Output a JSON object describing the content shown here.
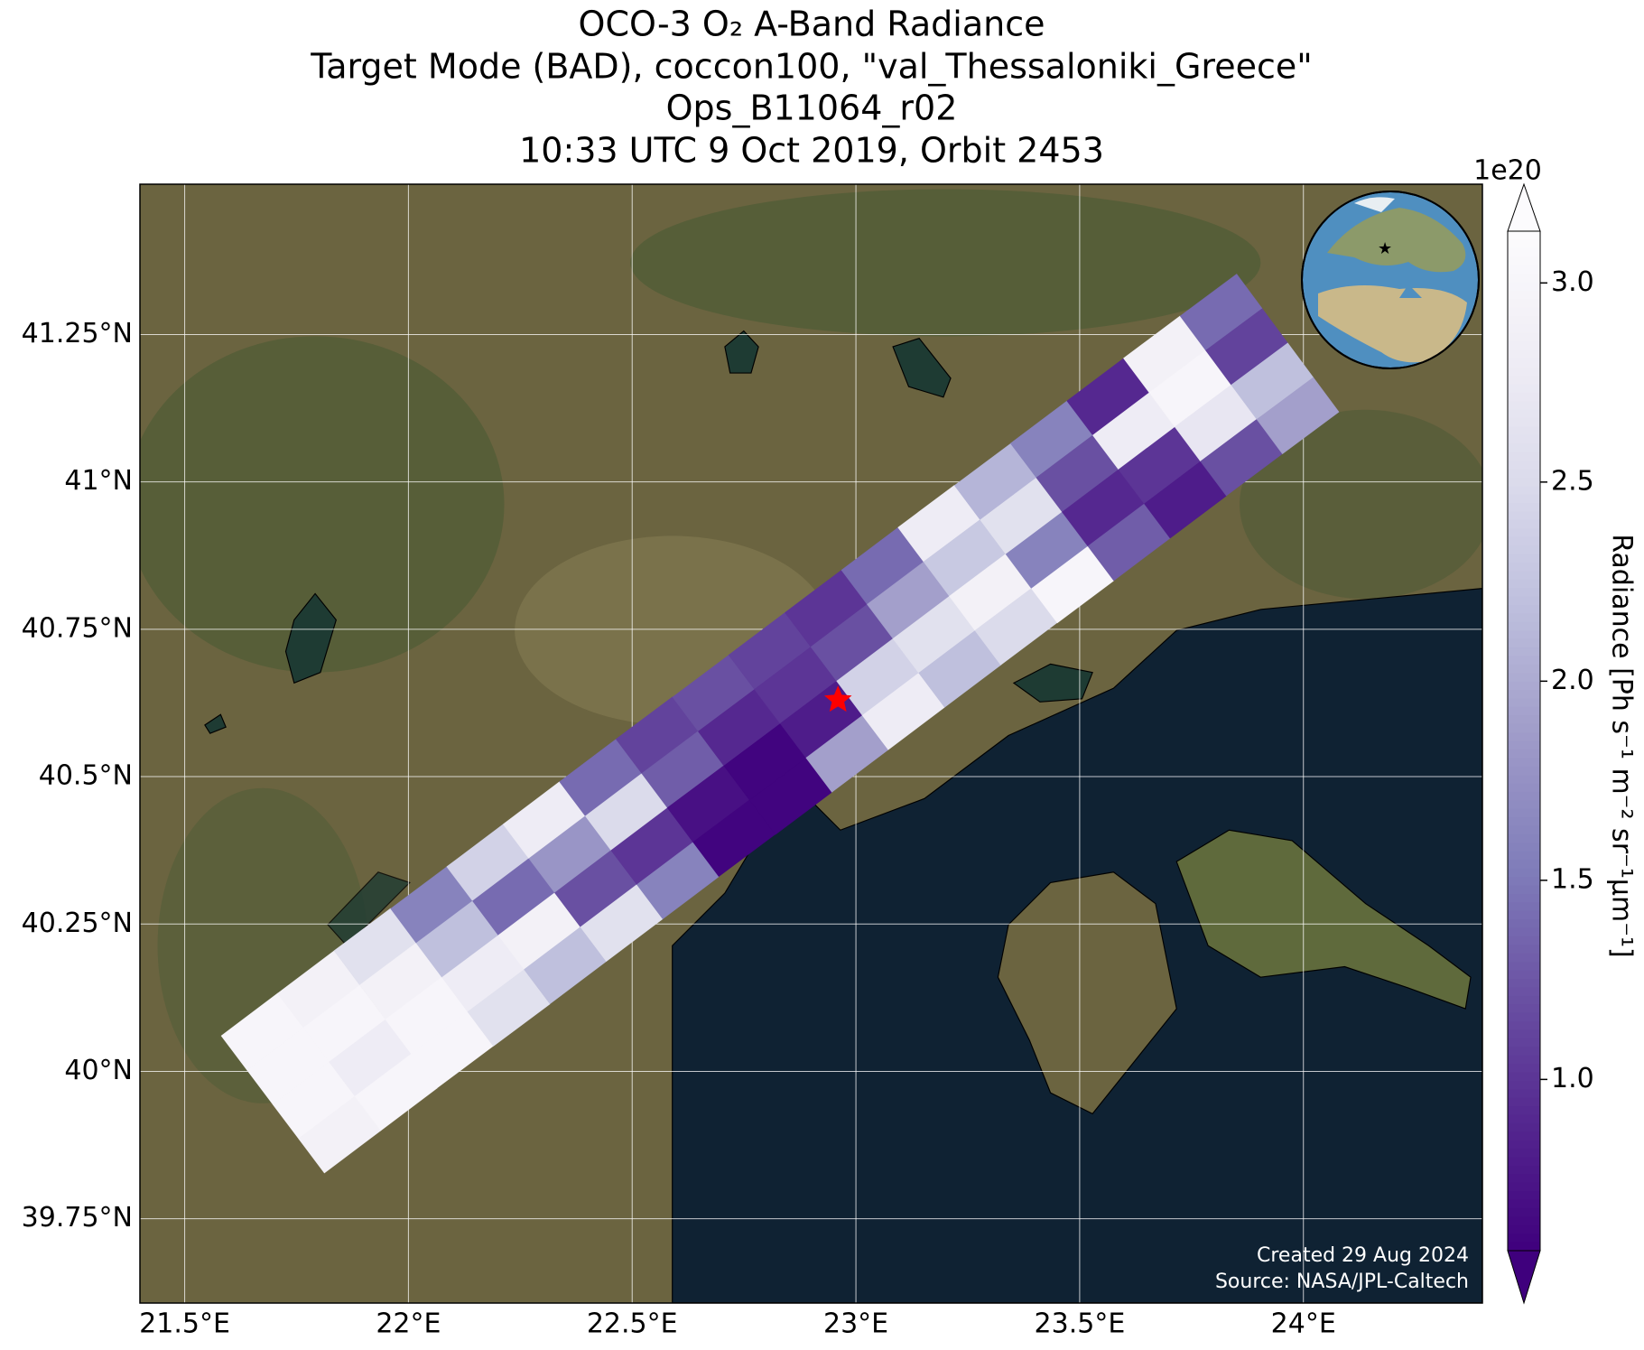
{
  "chart_data": {
    "type": "swath-map",
    "title": [
      "OCO-3 O₂ A-Band Radiance",
      "Target Mode (BAD), coccon100, \"val_Thessaloniki_Greece\"",
      "Ops_B11064_r02",
      "10:33 UTC 9 Oct 2019, Orbit 2453"
    ],
    "xlim": [
      21.4,
      24.4
    ],
    "ylim": [
      39.607,
      41.505
    ],
    "xticks": [
      {
        "value": 21.5,
        "label": "21.5°E"
      },
      {
        "value": 22,
        "label": "22°E"
      },
      {
        "value": 22.5,
        "label": "22.5°E"
      },
      {
        "value": 23,
        "label": "23°E"
      },
      {
        "value": 23.5,
        "label": "23.5°E"
      },
      {
        "value": 24,
        "label": "24°E"
      }
    ],
    "yticks": [
      {
        "value": 39.75,
        "label": "39.75°N"
      },
      {
        "value": 40,
        "label": "40°N"
      },
      {
        "value": 40.25,
        "label": "40.25°N"
      },
      {
        "value": 40.5,
        "label": "40.5°N"
      },
      {
        "value": 40.75,
        "label": "40.75°N"
      },
      {
        "value": 41,
        "label": "41°N"
      },
      {
        "value": 41.25,
        "label": "41.25°N"
      }
    ],
    "grid": true,
    "target": {
      "lon": 22.96,
      "lat": 40.63,
      "color": "#ff0000"
    },
    "swath": {
      "lon": [
        21.76,
        21.886,
        22.012,
        22.138,
        22.264,
        22.39,
        22.516,
        22.642,
        22.768,
        22.894,
        23.02,
        23.146,
        23.272,
        23.398,
        23.524,
        23.65,
        23.776,
        23.902
      ],
      "lat": [
        39.98,
        40.052,
        40.124,
        40.195,
        40.267,
        40.339,
        40.411,
        40.483,
        40.554,
        40.626,
        40.698,
        40.77,
        40.842,
        40.913,
        40.985,
        41.057,
        41.129,
        41.2
      ],
      "values": [
        [
          3.0,
          3.0,
          3.0,
          2.9
        ],
        [
          2.9,
          3.0,
          2.8,
          3.0
        ],
        [
          2.6,
          2.9,
          3.0,
          3.0
        ],
        [
          1.6,
          2.2,
          2.8,
          2.6
        ],
        [
          2.4,
          1.4,
          2.9,
          2.2
        ],
        [
          2.8,
          1.8,
          1.2,
          2.6
        ],
        [
          1.4,
          2.5,
          1.0,
          1.6
        ],
        [
          1.1,
          1.3,
          0.7,
          0.6
        ],
        [
          1.2,
          0.9,
          0.6,
          0.6
        ],
        [
          1.1,
          1.0,
          0.8,
          1.9
        ],
        [
          1.0,
          1.2,
          2.4,
          2.8
        ],
        [
          1.4,
          1.9,
          2.6,
          2.2
        ],
        [
          2.8,
          2.3,
          2.9,
          2.5
        ],
        [
          2.1,
          2.6,
          1.6,
          3.0
        ],
        [
          1.6,
          1.2,
          0.9,
          1.3
        ],
        [
          0.9,
          2.8,
          1.0,
          0.8
        ],
        [
          2.9,
          3.0,
          2.7,
          1.2
        ],
        [
          1.4,
          1.1,
          2.2,
          1.9
        ]
      ]
    },
    "colorbar": {
      "label": "Radiance [Ph s⁻¹ m⁻² sr⁻¹μm⁻¹]",
      "multiplier": "1e20",
      "clim": [
        0.57,
        3.13
      ],
      "ticks": [
        {
          "value": 1,
          "label": "1.0"
        },
        {
          "value": 1.5,
          "label": "1.5"
        },
        {
          "value": 2,
          "label": "2.0"
        },
        {
          "value": 2.5,
          "label": "2.5"
        },
        {
          "value": 3,
          "label": "3.0"
        }
      ],
      "colormap": [
        "#3f007d",
        "#54278f",
        "#6a51a3",
        "#807dba",
        "#9e9ac8",
        "#bcbddc",
        "#dadaeb",
        "#efedf5",
        "#fcfbfd"
      ]
    },
    "credits": [
      "Created 29 Aug 2024",
      "Source: NASA/JPL-Caltech"
    ]
  }
}
